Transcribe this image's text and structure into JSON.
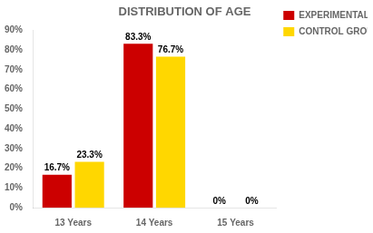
{
  "chart_data": {
    "type": "bar",
    "title": "DISTRIBUTION OF AGE",
    "categories": [
      "13 Years",
      "14 Years",
      "15 Years"
    ],
    "series": [
      {
        "name": "EXPERIMENTAL\nGROUP",
        "color": "#CC0000",
        "values": [
          16.7,
          83.3,
          0
        ],
        "value_labels": [
          "16.7%",
          "83.3%",
          "0%"
        ]
      },
      {
        "name": "CONTROL\nGROUP",
        "color": "#FFD700",
        "values": [
          23.3,
          76.7,
          0
        ],
        "value_labels": [
          "23.3%",
          "76.7%",
          "0%"
        ]
      }
    ],
    "ylim": [
      0,
      90
    ],
    "yticks": [
      {
        "value": 0,
        "label": "0%"
      },
      {
        "value": 10,
        "label": "10%"
      },
      {
        "value": 20,
        "label": "20%"
      },
      {
        "value": 30,
        "label": "30%"
      },
      {
        "value": 40,
        "label": "40%"
      },
      {
        "value": 50,
        "label": "50%"
      },
      {
        "value": 60,
        "label": "60%"
      },
      {
        "value": 70,
        "label": "70%"
      },
      {
        "value": 80,
        "label": "80%"
      },
      {
        "value": 90,
        "label": "90%"
      }
    ],
    "grid": false,
    "legend": "right",
    "data_labels": true
  }
}
